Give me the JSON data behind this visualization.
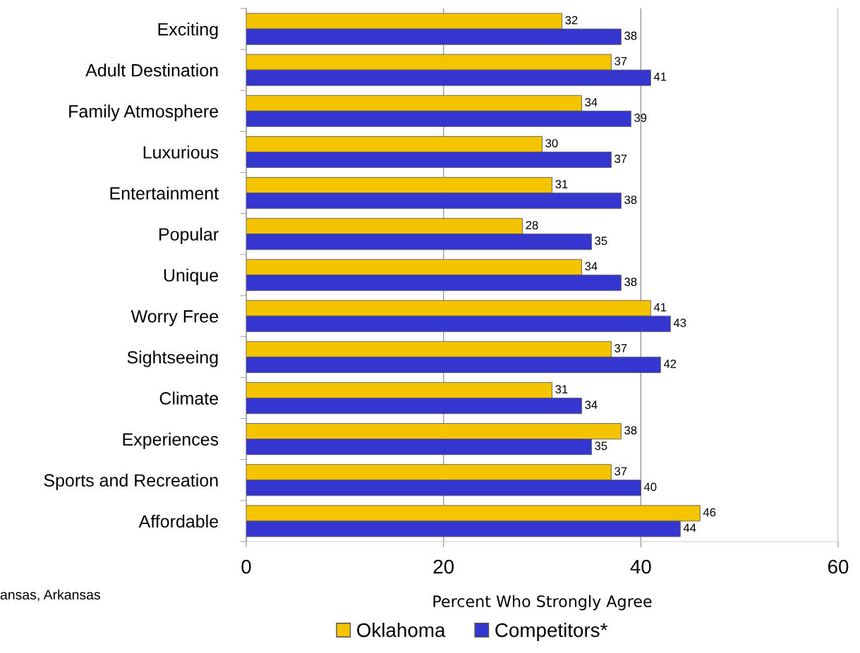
{
  "chart_data": {
    "type": "bar",
    "orientation": "horizontal",
    "xlabel": "Percent Who Strongly Agree",
    "categories": [
      "Exciting",
      "Adult Destination",
      "Family Atmosphere",
      "Luxurious",
      "Entertainment",
      "Popular",
      "Unique",
      "Worry Free",
      "Sightseeing",
      "Climate",
      "Experiences",
      "Sports and Recreation",
      "Affordable"
    ],
    "series": [
      {
        "name": "Oklahoma",
        "color": "#f5c400",
        "values": [
          32,
          37,
          34,
          30,
          31,
          28,
          34,
          41,
          37,
          31,
          38,
          37,
          46
        ]
      },
      {
        "name": "Competitors*",
        "color": "#3535d0",
        "values": [
          38,
          41,
          39,
          37,
          38,
          35,
          38,
          43,
          42,
          34,
          35,
          40,
          44
        ]
      }
    ],
    "xlim": [
      0,
      60
    ],
    "xticks": [
      0,
      20,
      40,
      60
    ],
    "grid": "x",
    "legend": "bottom",
    "data_labels": true,
    "annotations": [
      "ansas, Arkansas"
    ]
  }
}
